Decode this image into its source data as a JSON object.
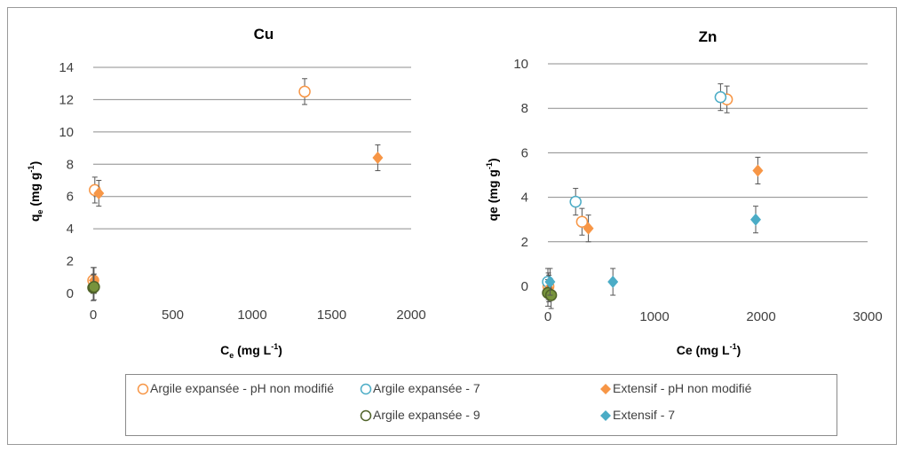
{
  "chart_data": [
    {
      "type": "scatter",
      "title": "Cu",
      "xlabel": "C",
      "xlabel_sub": "e",
      "xlabel_units": " (mg L",
      "xlabel_sup": "-1",
      "xlabel_close": ")",
      "ylabel": "q",
      "ylabel_sub": "e",
      "ylabel_units": " (mg g",
      "ylabel_sup": "-1",
      "ylabel_close": ")",
      "xlim": [
        0,
        2000
      ],
      "ylim": [
        0,
        14
      ],
      "x_ticks": [
        "0",
        "500",
        "1000",
        "1500",
        "2000"
      ],
      "y_ticks": [
        "0",
        "2",
        "4",
        "6",
        "8",
        "10",
        "12",
        "14"
      ],
      "grid": "horizontal",
      "series": [
        {
          "name": "Argile expansée - pH non modifié",
          "points": [
            [
              0,
              0.8
            ],
            [
              10,
              6.4
            ],
            [
              1330,
              12.5
            ]
          ],
          "err": [
            0.8,
            0.8,
            0.8
          ]
        },
        {
          "name": "Extensif - pH non modifié",
          "points": [
            [
              5,
              0.8
            ],
            [
              35,
              6.2
            ],
            [
              1790,
              8.4
            ]
          ],
          "err": [
            0.8,
            0.8,
            0.8
          ]
        },
        {
          "name": "Argile expansée - 9",
          "points": [
            [
              0,
              0.35
            ],
            [
              5,
              0.4
            ]
          ],
          "err": [
            0.8,
            0.8
          ]
        }
      ]
    },
    {
      "type": "scatter",
      "title": "Zn",
      "xlabel": "Ce (mg L",
      "xlabel_sup": "-1",
      "xlabel_close": ")",
      "ylabel": "qe (mg g",
      "ylabel_sup": "-1",
      "ylabel_close": ")",
      "xlim": [
        0,
        3000
      ],
      "ylim": [
        -0.5,
        10
      ],
      "x_ticks": [
        "0",
        "1000",
        "2000",
        "3000"
      ],
      "y_ticks": [
        "0",
        "2",
        "4",
        "6",
        "8",
        "10"
      ],
      "grid": "horizontal",
      "series": [
        {
          "name": "Argile expansée - pH non modifié",
          "points": [
            [
              5,
              0
            ],
            [
              320,
              2.9
            ],
            [
              1680,
              8.4
            ]
          ],
          "err": [
            0.6,
            0.6,
            0.6
          ]
        },
        {
          "name": "Argile expansée - 7",
          "points": [
            [
              0,
              0.2
            ],
            [
              260,
              3.8
            ],
            [
              1620,
              8.5
            ]
          ],
          "err": [
            0.6,
            0.6,
            0.6
          ]
        },
        {
          "name": "Extensif - pH non modifié",
          "points": [
            [
              10,
              -0.1
            ],
            [
              380,
              2.6
            ],
            [
              1970,
              5.2
            ]
          ],
          "err": [
            0.6,
            0.6,
            0.6
          ]
        },
        {
          "name": "Argile expansée - 9",
          "points": [
            [
              0,
              -0.3
            ],
            [
              30,
              -0.4
            ]
          ],
          "err": [
            0.6,
            0.6
          ]
        },
        {
          "name": "Extensif - 7",
          "points": [
            [
              20,
              0.2
            ],
            [
              610,
              0.2
            ],
            [
              1950,
              3.0
            ]
          ],
          "err": [
            0.6,
            0.6,
            0.6
          ]
        }
      ]
    }
  ],
  "legend": {
    "items": [
      {
        "label": "Argile expansée - pH non modifié",
        "shape": "circle-open",
        "color": "#F79646"
      },
      {
        "label": "Argile expansée - 7",
        "shape": "circle-open",
        "color": "#4BACC6"
      },
      {
        "label": "Extensif - pH non modifié",
        "shape": "diamond",
        "color": "#F79646"
      },
      {
        "label": "Argile expansée - 9",
        "shape": "circle-open",
        "color": "#4F6228"
      },
      {
        "label": "Extensif - 7",
        "shape": "diamond",
        "color": "#4BACC6"
      }
    ]
  },
  "styles": {
    "Argile expansée - pH non modifié": {
      "shape": "circle-open",
      "color": "#F79646"
    },
    "Argile expansée - 7": {
      "shape": "circle-open",
      "color": "#4BACC6"
    },
    "Extensif - pH non modifié": {
      "shape": "diamond",
      "color": "#F79646"
    },
    "Argile expansée - 9": {
      "shape": "circle-filled",
      "color": "#77933C",
      "stroke": "#4F6228"
    },
    "Extensif - 7": {
      "shape": "diamond",
      "color": "#4BACC6"
    }
  }
}
